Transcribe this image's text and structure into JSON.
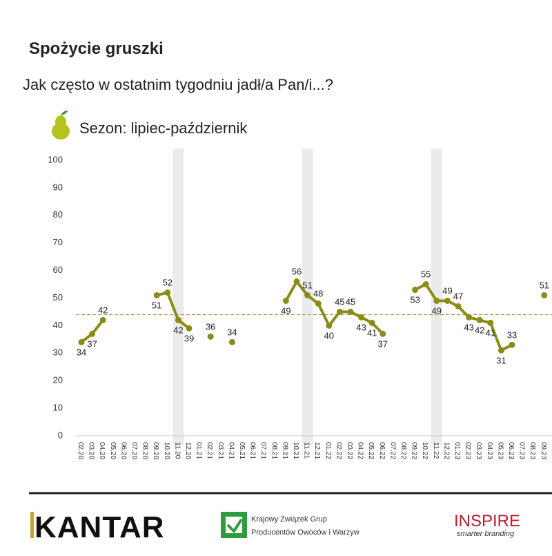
{
  "header": {
    "title": "Spożycie gruszki",
    "subtitle": "Jak często w ostatnim tygodniu jadł/a Pan/i...?",
    "season": "Sezon: lipiec-październik"
  },
  "chart_data": {
    "type": "line",
    "categories": [
      "02.20",
      "03.20",
      "04.20",
      "05.20",
      "06.20",
      "07.20",
      "08.20",
      "09.20",
      "10.20",
      "11.20",
      "12.20",
      "01.21",
      "02.21",
      "03.21",
      "04.21",
      "05.21",
      "06.21",
      "07.21",
      "08.21",
      "09.21",
      "10.21",
      "11.21",
      "12.21",
      "01.22",
      "02.22",
      "03.22",
      "04.22",
      "05.22",
      "06.22",
      "07.22",
      "08.22",
      "09.22",
      "10.22",
      "11.22",
      "12.22",
      "01.23",
      "02.23",
      "03.23",
      "04.23",
      "05.23",
      "06.23",
      "07.23",
      "08.23",
      "09.23"
    ],
    "values": [
      34,
      37,
      42,
      null,
      null,
      null,
      null,
      51,
      52,
      42,
      39,
      null,
      36,
      null,
      34,
      null,
      null,
      null,
      null,
      49,
      56,
      51,
      48,
      40,
      45,
      45,
      43,
      41,
      37,
      null,
      null,
      53,
      55,
      49,
      49,
      47,
      43,
      42,
      41,
      31,
      33,
      null,
      null,
      51
    ],
    "color": "#8b8b17",
    "ylim": [
      0,
      100
    ],
    "yticks": [
      0,
      10,
      20,
      30,
      40,
      50,
      60,
      70,
      80,
      90,
      100
    ],
    "grid": false,
    "reference_line": 44,
    "shaded_categories": [
      9,
      21,
      33
    ]
  },
  "footer": {
    "logo1": "KANTAR",
    "logo2_line1": "Krajowy Związek Grup",
    "logo2_line2": "Producentów Owoców i Warzyw",
    "logo3": "INSPIRE",
    "logo3_tag": "smarter branding"
  }
}
